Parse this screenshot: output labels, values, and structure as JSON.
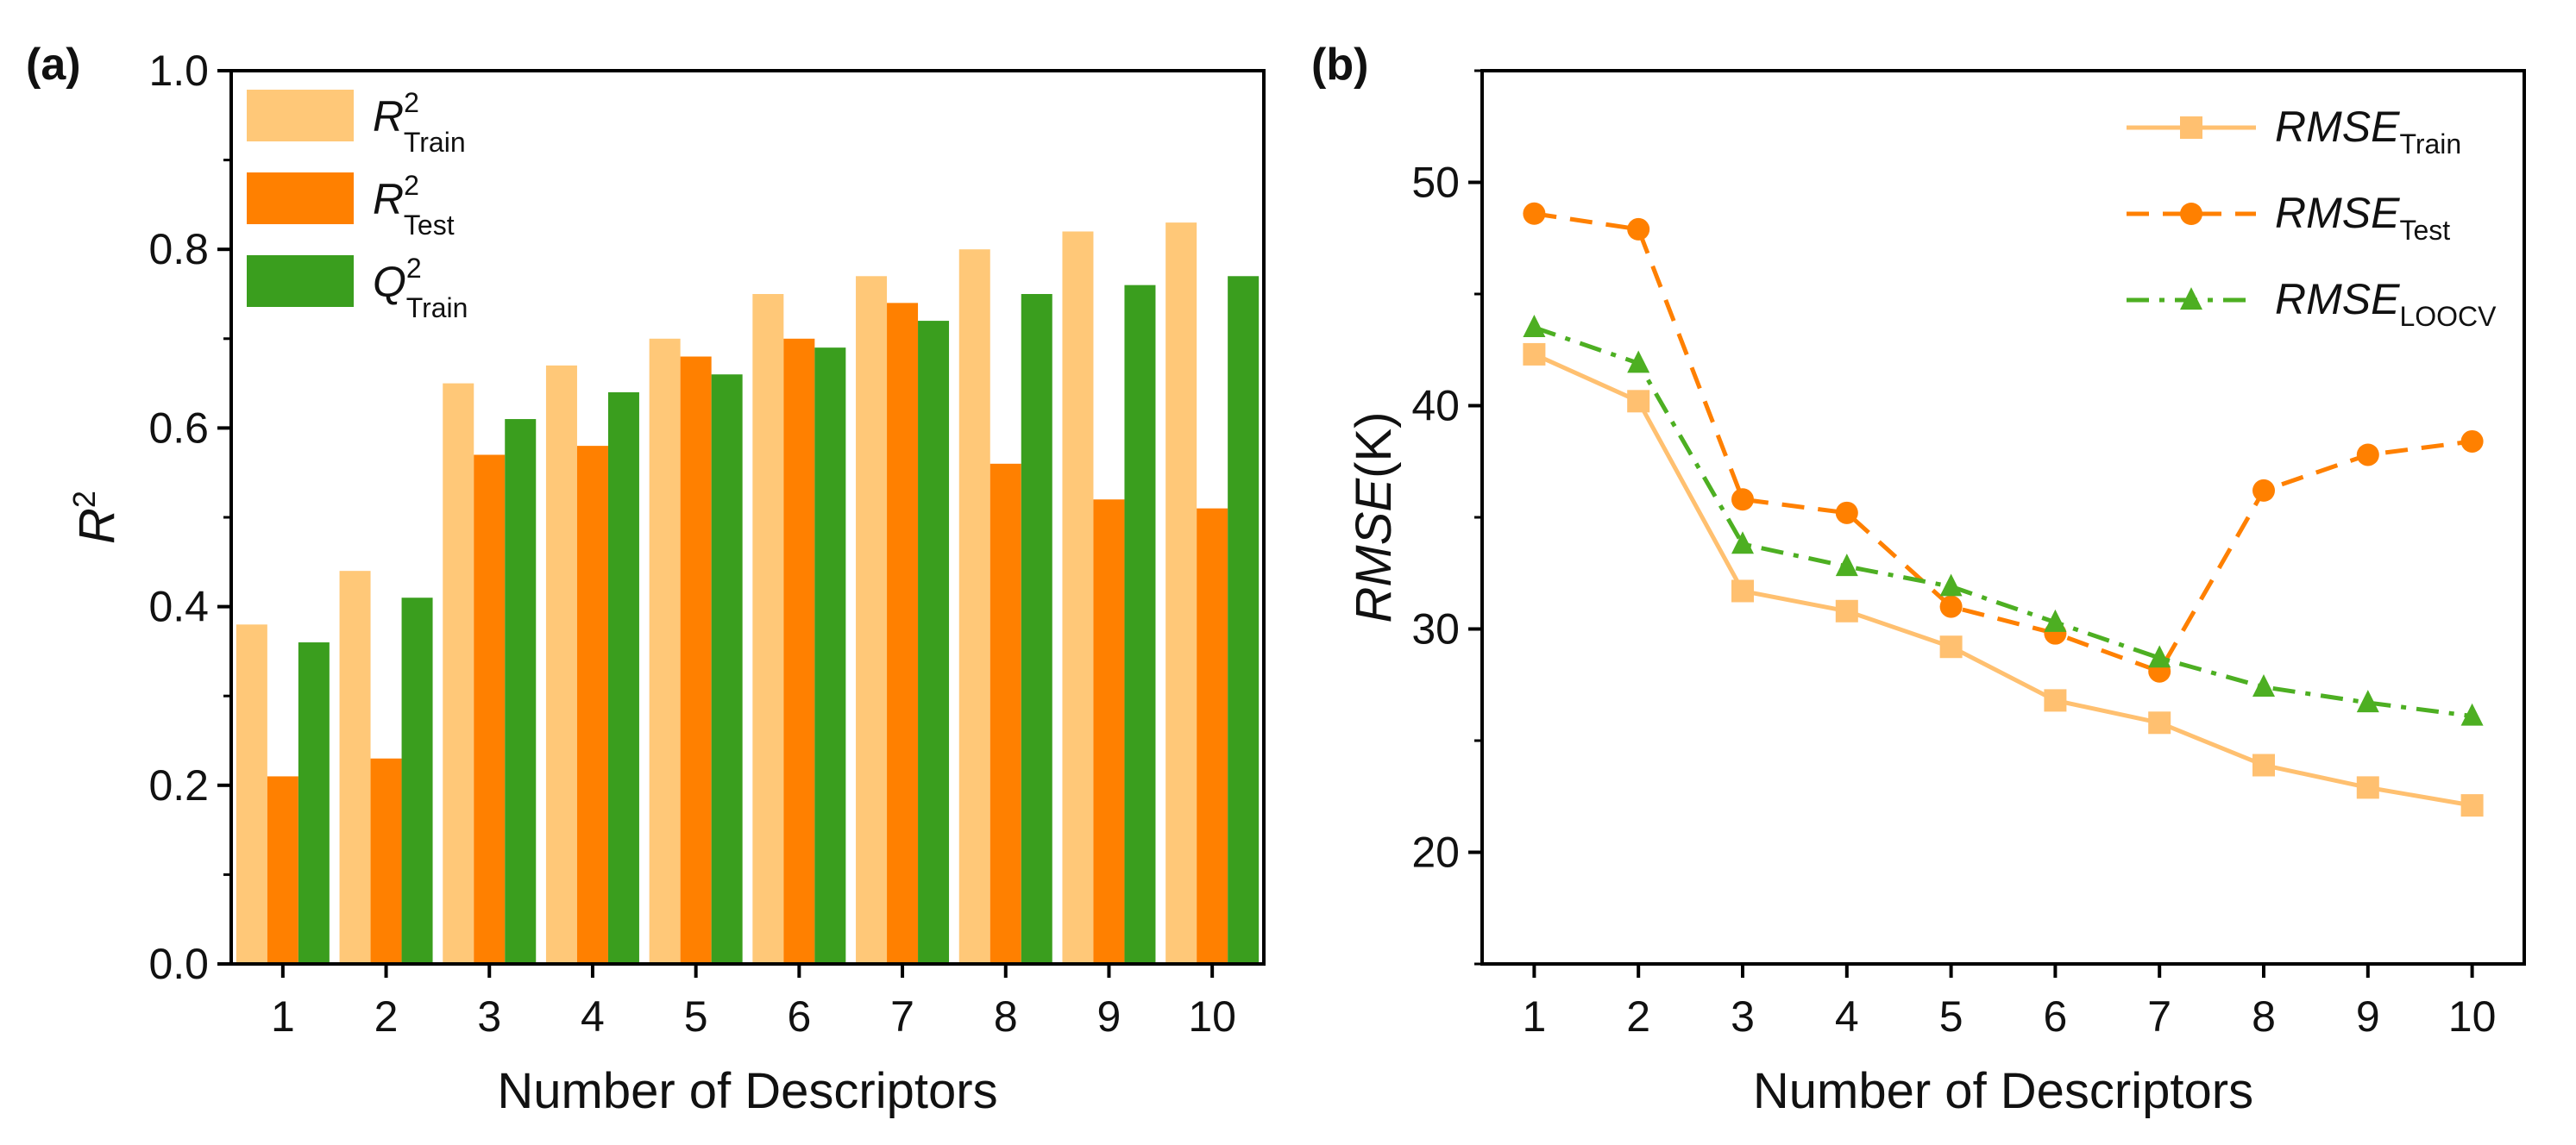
{
  "chart_data": [
    {
      "panel": "(a)",
      "type": "bar",
      "categories": [
        "1",
        "2",
        "3",
        "4",
        "5",
        "6",
        "7",
        "8",
        "9",
        "10"
      ],
      "series": [
        {
          "name": "R2 Train",
          "symbol": "R",
          "sup": "2",
          "sub": "Train",
          "italic": true,
          "color": "#FFC878",
          "values": [
            0.38,
            0.44,
            0.65,
            0.67,
            0.7,
            0.75,
            0.77,
            0.8,
            0.82,
            0.83
          ]
        },
        {
          "name": "R2 Test",
          "symbol": "R",
          "sup": "2",
          "sub": "Test",
          "italic": true,
          "color": "#FF8000",
          "values": [
            0.21,
            0.23,
            0.57,
            0.58,
            0.68,
            0.7,
            0.74,
            0.56,
            0.52,
            0.51
          ]
        },
        {
          "name": "Q2 Train",
          "symbol": "Q",
          "sup": "2",
          "sub": "Train",
          "italic": true,
          "color": "#3A9E1E",
          "values": [
            0.36,
            0.41,
            0.61,
            0.64,
            0.66,
            0.69,
            0.72,
            0.75,
            0.76,
            0.77
          ]
        }
      ],
      "xlabel": "Number of Descriptors",
      "ylabel": "R",
      "ylabel_sup": "2",
      "ylim": [
        0.0,
        1.0
      ],
      "yticks": [
        "0.0",
        "0.2",
        "0.4",
        "0.6",
        "0.8",
        "1.0"
      ],
      "legend_position": "top-left"
    },
    {
      "panel": "(b)",
      "type": "line",
      "x": [
        "1",
        "2",
        "3",
        "4",
        "5",
        "6",
        "7",
        "8",
        "9",
        "10"
      ],
      "series": [
        {
          "name": "RMSE Train",
          "symbol": "RMSE",
          "sub": "Train",
          "color": "#FFC070",
          "marker": "square",
          "linestyle": "solid",
          "values": [
            42.3,
            40.2,
            31.7,
            30.8,
            29.2,
            26.8,
            25.8,
            23.9,
            22.9,
            22.1
          ]
        },
        {
          "name": "RMSE Test",
          "symbol": "RMSE",
          "sub": "Test",
          "color": "#FF8000",
          "marker": "circle",
          "linestyle": "dashed",
          "values": [
            48.6,
            47.9,
            35.8,
            35.2,
            31.0,
            29.8,
            28.1,
            36.2,
            37.8,
            38.4
          ]
        },
        {
          "name": "RMSE LOOCV",
          "symbol": "RMSE",
          "sub": "LOOCV",
          "color": "#4DAF22",
          "marker": "triangle",
          "linestyle": "dashdot",
          "values": [
            43.5,
            41.9,
            33.8,
            32.8,
            31.9,
            30.3,
            28.7,
            27.4,
            26.7,
            26.1
          ]
        }
      ],
      "xlabel": "Number of Descriptors",
      "ylabel_italic": "RMSE",
      "ylabel_unit": "(K)",
      "ylim": [
        15,
        55
      ],
      "yticks": [
        "20",
        "30",
        "40",
        "50"
      ],
      "legend_position": "top-right"
    }
  ]
}
